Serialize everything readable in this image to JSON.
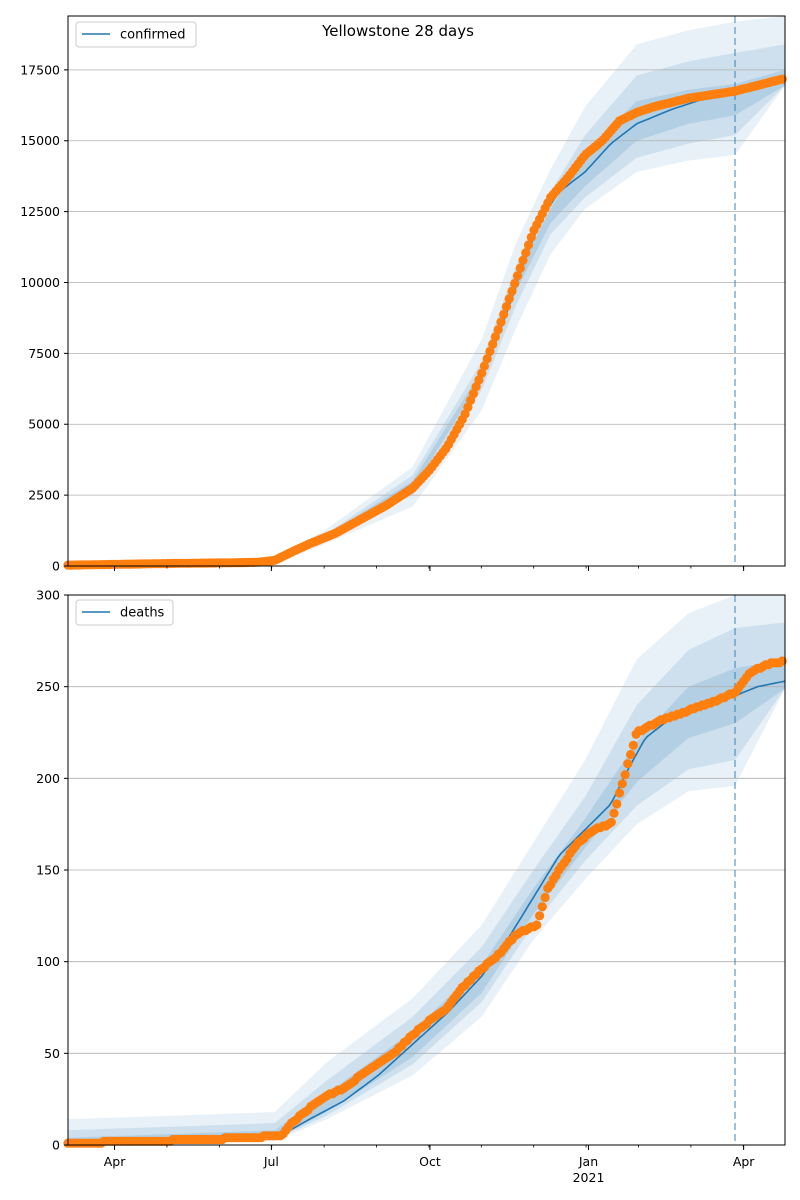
{
  "chart_data": [
    {
      "type": "line",
      "title": "Yellowstone 28 days",
      "legend": {
        "label": "confirmed",
        "placement": "top-left"
      },
      "ylim": [
        0,
        19400
      ],
      "yticks": [
        0,
        2500,
        5000,
        7500,
        10000,
        12500,
        15000,
        17500
      ],
      "xlim_days": [
        0,
        416
      ],
      "forecast_start_day": 387,
      "series": [
        {
          "name": "confirmed (model)",
          "points": [
            [
              0,
              10
            ],
            [
              60,
              40
            ],
            [
              110,
              140
            ],
            [
              125,
              350
            ],
            [
              140,
              800
            ],
            [
              160,
              1400
            ],
            [
              180,
              2100
            ],
            [
              200,
              2900
            ],
            [
              215,
              3800
            ],
            [
              225,
              4700
            ],
            [
              235,
              6000
            ],
            [
              245,
              7400
            ],
            [
              255,
              9000
            ],
            [
              265,
              10800
            ],
            [
              275,
              12300
            ],
            [
              285,
              13200
            ],
            [
              300,
              13900
            ],
            [
              315,
              14900
            ],
            [
              330,
              15600
            ],
            [
              350,
              16100
            ],
            [
              370,
              16500
            ],
            [
              387,
              16700
            ],
            [
              400,
              16950
            ],
            [
              416,
              17150
            ]
          ]
        },
        {
          "name": "confirmed (observed)",
          "points": [
            [
              0,
              30
            ],
            [
              30,
              60
            ],
            [
              60,
              90
            ],
            [
              90,
              110
            ],
            [
              110,
              130
            ],
            [
              120,
              200
            ],
            [
              130,
              500
            ],
            [
              140,
              780
            ],
            [
              155,
              1150
            ],
            [
              170,
              1650
            ],
            [
              185,
              2150
            ],
            [
              200,
              2750
            ],
            [
              210,
              3400
            ],
            [
              220,
              4200
            ],
            [
              230,
              5300
            ],
            [
              240,
              6800
            ],
            [
              250,
              8400
            ],
            [
              260,
              10100
            ],
            [
              270,
              11800
            ],
            [
              280,
              13000
            ],
            [
              290,
              13700
            ],
            [
              300,
              14500
            ],
            [
              310,
              15000
            ],
            [
              320,
              15700
            ],
            [
              330,
              16000
            ],
            [
              340,
              16200
            ],
            [
              360,
              16500
            ],
            [
              387,
              16750
            ],
            [
              400,
              16950
            ],
            [
              416,
              17200
            ]
          ]
        }
      ],
      "bands": [
        {
          "level": "outer",
          "lower": [
            [
              0,
              0
            ],
            [
              120,
              50
            ],
            [
              150,
              800
            ],
            [
              200,
              2100
            ],
            [
              240,
              5500
            ],
            [
              260,
              8400
            ],
            [
              280,
              11000
            ],
            [
              300,
              12600
            ],
            [
              330,
              13900
            ],
            [
              360,
              14300
            ],
            [
              387,
              14500
            ]
          ],
          "upper": [
            [
              0,
              40
            ],
            [
              120,
              250
            ],
            [
              150,
              1300
            ],
            [
              200,
              3500
            ],
            [
              240,
              8000
            ],
            [
              260,
              11400
            ],
            [
              280,
              14000
            ],
            [
              300,
              16200
            ],
            [
              330,
              18400
            ],
            [
              360,
              18900
            ],
            [
              387,
              19200
            ],
            [
              416,
              19400
            ]
          ]
        },
        {
          "level": "middle",
          "lower": [
            [
              0,
              0
            ],
            [
              120,
              100
            ],
            [
              150,
              950
            ],
            [
              200,
              2500
            ],
            [
              240,
              6200
            ],
            [
              260,
              9200
            ],
            [
              280,
              11700
            ],
            [
              300,
              13000
            ],
            [
              330,
              14400
            ],
            [
              360,
              14900
            ],
            [
              387,
              15200
            ]
          ],
          "upper": [
            [
              0,
              30
            ],
            [
              120,
              200
            ],
            [
              150,
              1150
            ],
            [
              200,
              3200
            ],
            [
              240,
              7200
            ],
            [
              260,
              10600
            ],
            [
              280,
              13200
            ],
            [
              300,
              15200
            ],
            [
              330,
              17300
            ],
            [
              360,
              17800
            ],
            [
              387,
              18100
            ],
            [
              416,
              18400
            ]
          ]
        },
        {
          "level": "inner",
          "lower": [
            [
              0,
              0
            ],
            [
              120,
              120
            ],
            [
              150,
              1050
            ],
            [
              200,
              2700
            ],
            [
              240,
              6600
            ],
            [
              260,
              9700
            ],
            [
              280,
              12100
            ],
            [
              300,
              13400
            ],
            [
              330,
              15000
            ],
            [
              360,
              15600
            ],
            [
              387,
              15900
            ]
          ],
          "upper": [
            [
              0,
              20
            ],
            [
              120,
              170
            ],
            [
              150,
              1100
            ],
            [
              200,
              3000
            ],
            [
              240,
              6900
            ],
            [
              260,
              10200
            ],
            [
              280,
              12600
            ],
            [
              300,
              14600
            ],
            [
              330,
              16400
            ],
            [
              360,
              16800
            ],
            [
              387,
              17000
            ],
            [
              416,
              17500
            ]
          ]
        }
      ]
    },
    {
      "type": "line",
      "legend": {
        "label": "deaths",
        "placement": "top-left"
      },
      "ylim": [
        0,
        300
      ],
      "yticks": [
        0,
        50,
        100,
        150,
        200,
        250,
        300
      ],
      "xlim_days": [
        0,
        416
      ],
      "forecast_start_day": 387,
      "xticks": [
        {
          "day": 27,
          "label": "Apr"
        },
        {
          "day": 118,
          "label": "Jul"
        },
        {
          "day": 210,
          "label": "Oct"
        },
        {
          "day": 302,
          "label": "Jan",
          "sublabel": "2021"
        },
        {
          "day": 392,
          "label": "Apr"
        }
      ],
      "series": [
        {
          "name": "deaths (model)",
          "points": [
            [
              0,
              1
            ],
            [
              60,
              2
            ],
            [
              110,
              4
            ],
            [
              125,
              6
            ],
            [
              140,
              14
            ],
            [
              160,
              24
            ],
            [
              180,
              38
            ],
            [
              200,
              55
            ],
            [
              220,
              72
            ],
            [
              240,
              92
            ],
            [
              255,
              112
            ],
            [
              270,
              135
            ],
            [
              285,
              158
            ],
            [
              300,
              172
            ],
            [
              315,
              186
            ],
            [
              325,
              205
            ],
            [
              335,
              222
            ],
            [
              350,
              233
            ],
            [
              370,
              240
            ],
            [
              387,
              245
            ],
            [
              400,
              250
            ],
            [
              416,
              253
            ]
          ]
        },
        {
          "name": "deaths (observed)",
          "points": [
            [
              0,
              1
            ],
            [
              40,
              2
            ],
            [
              80,
              3
            ],
            [
              100,
              4
            ],
            [
              124,
              5
            ],
            [
              130,
              12
            ],
            [
              140,
              20
            ],
            [
              150,
              27
            ],
            [
              160,
              31
            ],
            [
              170,
              38
            ],
            [
              180,
              44
            ],
            [
              190,
              51
            ],
            [
              200,
              60
            ],
            [
              210,
              68
            ],
            [
              220,
              75
            ],
            [
              230,
              87
            ],
            [
              240,
              96
            ],
            [
              250,
              104
            ],
            [
              260,
              115
            ],
            [
              272,
              120
            ],
            [
              278,
              139
            ],
            [
              285,
              150
            ],
            [
              295,
              164
            ],
            [
              305,
              172
            ],
            [
              315,
              175
            ],
            [
              330,
              225
            ],
            [
              345,
              232
            ],
            [
              360,
              237
            ],
            [
              375,
              242
            ],
            [
              387,
              247
            ],
            [
              395,
              257
            ],
            [
              405,
              262
            ],
            [
              416,
              264
            ]
          ]
        }
      ],
      "bands": [
        {
          "level": "outer",
          "lower": [
            [
              0,
              0
            ],
            [
              120,
              2
            ],
            [
              150,
              14
            ],
            [
              200,
              38
            ],
            [
              240,
              70
            ],
            [
              270,
              112
            ],
            [
              300,
              145
            ],
            [
              330,
              175
            ],
            [
              360,
              193
            ],
            [
              387,
              196
            ]
          ],
          "upper": [
            [
              0,
              14
            ],
            [
              120,
              18
            ],
            [
              150,
              45
            ],
            [
              200,
              80
            ],
            [
              240,
              120
            ],
            [
              270,
              165
            ],
            [
              300,
              210
            ],
            [
              330,
              265
            ],
            [
              360,
              290
            ],
            [
              387,
              300
            ],
            [
              416,
              300
            ]
          ]
        },
        {
          "level": "middle",
          "lower": [
            [
              0,
              0
            ],
            [
              120,
              3
            ],
            [
              150,
              16
            ],
            [
              200,
              44
            ],
            [
              240,
              78
            ],
            [
              270,
              120
            ],
            [
              300,
              155
            ],
            [
              330,
              185
            ],
            [
              360,
              205
            ],
            [
              387,
              210
            ]
          ],
          "upper": [
            [
              0,
              8
            ],
            [
              120,
              12
            ],
            [
              150,
              35
            ],
            [
              200,
              70
            ],
            [
              240,
              108
            ],
            [
              270,
              150
            ],
            [
              300,
              190
            ],
            [
              330,
              240
            ],
            [
              360,
              270
            ],
            [
              387,
              282
            ],
            [
              416,
              285
            ]
          ]
        },
        {
          "level": "inner",
          "lower": [
            [
              0,
              0
            ],
            [
              120,
              3
            ],
            [
              150,
              18
            ],
            [
              200,
              48
            ],
            [
              240,
              83
            ],
            [
              270,
              126
            ],
            [
              300,
              162
            ],
            [
              330,
              198
            ],
            [
              360,
              222
            ],
            [
              387,
              230
            ]
          ],
          "upper": [
            [
              0,
              4
            ],
            [
              120,
              8
            ],
            [
              150,
              28
            ],
            [
              200,
              62
            ],
            [
              240,
              98
            ],
            [
              270,
              140
            ],
            [
              300,
              178
            ],
            [
              330,
              220
            ],
            [
              360,
              250
            ],
            [
              387,
              260
            ],
            [
              416,
              265
            ]
          ]
        }
      ]
    }
  ],
  "colors": {
    "model_line": "#1f77b4",
    "observed_points": "#ff7f0e",
    "band": "#1f77b4",
    "forecast_line": "#1f77b4",
    "grid": "#b0b0b0"
  }
}
